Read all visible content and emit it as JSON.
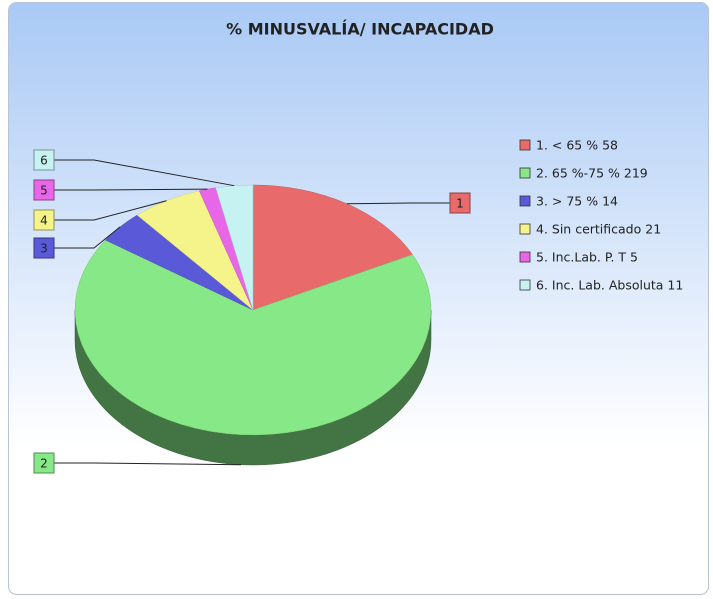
{
  "chart_data": {
    "type": "pie",
    "title": "% MINUSVALÍA/ INCAPACIDAD",
    "categories": [
      "1. < 65 % 58",
      "2. 65 %-75 % 219",
      "3. > 75 % 14",
      "4. Sin certificado 21",
      "5. Inc.Lab. P. T 5",
      "6. Inc. Lab. Absoluta 11"
    ],
    "slice_labels": [
      "1",
      "2",
      "3",
      "4",
      "5",
      "6"
    ],
    "values": [
      58,
      219,
      14,
      21,
      5,
      11
    ],
    "colors": [
      "#e86a6a",
      "#86e886",
      "#5a5ad8",
      "#f4f48a",
      "#e866e8",
      "#c6f2f2"
    ],
    "legend": "right"
  }
}
